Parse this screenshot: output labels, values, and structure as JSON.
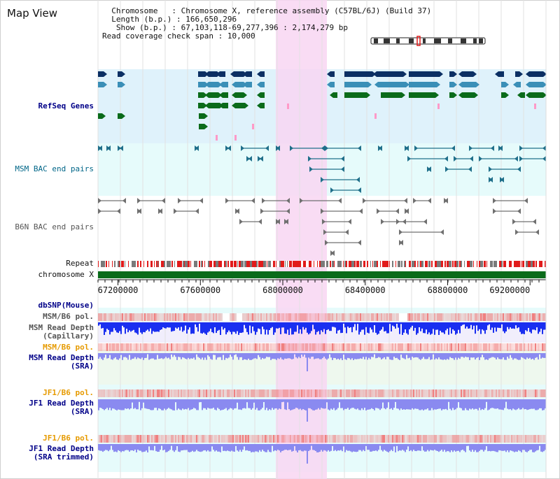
{
  "app": {
    "title": "Map View"
  },
  "info": {
    "chromosome_key": "Chromosome",
    "chromosome_value": "Chromosome X, reference assembly (C57BL/6J) (Build 37)",
    "length_key": "Length (b.p.)",
    "length_value": "166,650,296",
    "show_key": "Show (b.p.)",
    "show_value": "67,103,118-69,277,396 : 2,174,279 bp",
    "coverage_key": "Read coverage check span",
    "coverage_value": "10,000"
  },
  "tracks": {
    "refseq": "RefSeq Genes",
    "msm_bac": "MSM BAC end pairs",
    "b6n_bac": "B6N BAC end pairs",
    "repeat": "Repeat",
    "chromosome": "chromosome X",
    "dbsnp": "dbSNP(Mouse)",
    "msm_b6_pol_1": "MSM/B6 pol.",
    "msm_read_depth_cap": "MSM Read Depth",
    "msm_read_depth_cap_sub": "(Capillary)",
    "msm_b6_pol_2": "MSM/B6 pol.",
    "msm_read_depth_sra": "MSM Read Depth",
    "msm_read_depth_sra_sub": "(SRA)",
    "jf1_b6_pol_1": "JF1/B6 pol.",
    "jf1_read_depth_sra": "JF1 Read Depth",
    "jf1_read_depth_sra_sub": "(SRA)",
    "jf1_b6_pol_2": "JF1/B6 pol.",
    "jf1_read_depth_trim": "JF1 Read Depth",
    "jf1_read_depth_trim_sub": "(SRA trimmed)"
  },
  "axis": {
    "range_start": 67103118,
    "range_end": 69277396,
    "ticks": [
      "67200000",
      "67600000",
      "68000000",
      "68400000",
      "68800000",
      "69200000"
    ],
    "tick_values": [
      67200000,
      67600000,
      68000000,
      68400000,
      68800000,
      69200000
    ]
  },
  "highlight": {
    "start_bp": 68000000,
    "end_bp": 68180000
  },
  "colors": {
    "highlight": "#f8d6f2",
    "refseq_bg": "#dff2fb",
    "msm_bac_bg": "#e6fbfb",
    "gene_dark": "#0b2f63",
    "gene_mid": "#3a8fb7",
    "gene_green": "#0a6b1a",
    "gene_pink": "#ff9ac8",
    "bac_msm": "#1f6f8a",
    "bac_b6n": "#707070",
    "repeat_red": "#e11b1b",
    "repeat_gray": "#7a7a7a",
    "chromosome": "#0a6b1a",
    "pol": "#f08080",
    "depth_blue": "#1a2ff0",
    "depth_light": "#8a8af0",
    "label_navy": "#000088",
    "label_teal": "#006688",
    "label_orange": "#e69a00"
  }
}
